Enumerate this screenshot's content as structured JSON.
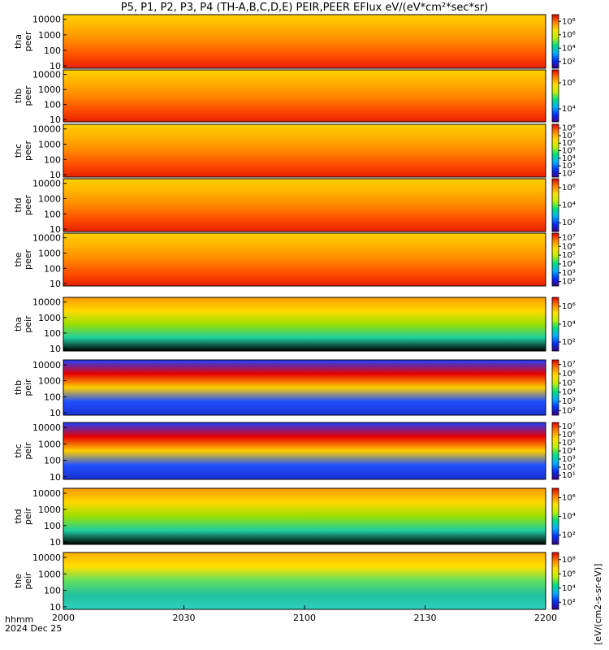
{
  "chart_data": {
    "type": "heatmap",
    "title": "P5, P1, P2, P3, P4 (TH-A,B,C,D,E) PEIR,PEER EFlux eV/(eV*cm²*sec*sr)",
    "x_ticks": [
      "2000",
      "2030",
      "2100",
      "2130",
      "2200"
    ],
    "x_range": [
      "2000",
      "2200"
    ],
    "xlabel_line1": "hhmm",
    "xlabel_line2": "2024 Dec 25",
    "y_scale": "log",
    "y_ticks": [
      "10",
      "100",
      "1000",
      "10000"
    ],
    "colorbar_units": "[eV/(cm2-s-sr-eV)]",
    "colormap": [
      "#3a0080",
      "#0030ff",
      "#00b0ff",
      "#00e080",
      "#c0f000",
      "#ffe000",
      "#ff8000",
      "#e00000"
    ],
    "panels": [
      {
        "probe": "tha",
        "species": "peer",
        "cbar_ticks": [
          "10²",
          "10⁴",
          "10⁶",
          "10⁸"
        ]
      },
      {
        "probe": "thb",
        "species": "peer",
        "cbar_ticks": [
          "10⁴",
          "10⁶"
        ]
      },
      {
        "probe": "thc",
        "species": "peer",
        "cbar_ticks": [
          "10²",
          "10³",
          "10⁴",
          "10⁵",
          "10⁶",
          "10⁷",
          "10⁸"
        ]
      },
      {
        "probe": "thd",
        "species": "peer",
        "cbar_ticks": [
          "10²",
          "10⁴",
          "10⁶"
        ]
      },
      {
        "probe": "the",
        "species": "peer",
        "cbar_ticks": [
          "10²",
          "10³",
          "10⁴",
          "10⁵",
          "10⁶",
          "10⁷"
        ]
      },
      {
        "probe": "tha",
        "species": "peir",
        "cbar_ticks": [
          "10²",
          "10⁴",
          "10⁶"
        ]
      },
      {
        "probe": "thb",
        "species": "peir",
        "cbar_ticks": [
          "10²",
          "10³",
          "10⁴",
          "10⁵",
          "10⁶",
          "10⁷"
        ]
      },
      {
        "probe": "thc",
        "species": "peir",
        "cbar_ticks": [
          "10¹",
          "10²",
          "10³",
          "10⁴",
          "10⁵",
          "10⁶",
          "10⁷"
        ]
      },
      {
        "probe": "thd",
        "species": "peir",
        "cbar_ticks": [
          "10²",
          "10⁴",
          "10⁶"
        ]
      },
      {
        "probe": "the",
        "species": "peir",
        "cbar_ticks": [
          "10²",
          "10⁴",
          "10⁶",
          "10⁸"
        ]
      }
    ]
  }
}
